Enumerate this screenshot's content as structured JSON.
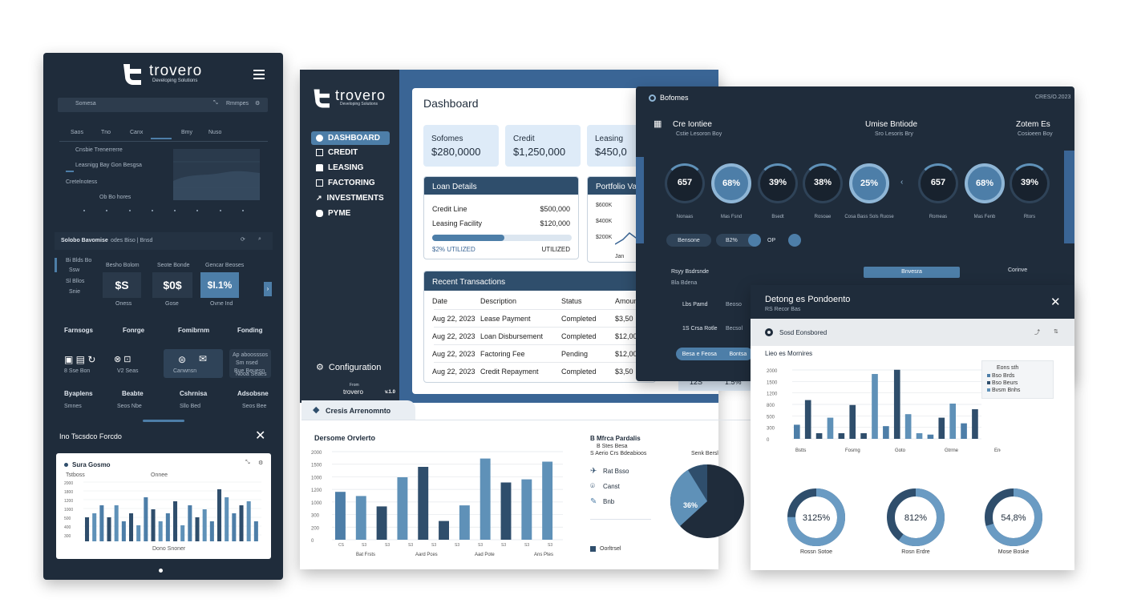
{
  "colors": {
    "dark": "#1f2c3b",
    "sidebar": "#23303f",
    "accent": "#4d7ea8",
    "accent_light": "#8fb6d6",
    "navy": "#2f4e6c",
    "card": "#deebf8"
  },
  "mobile": {
    "brand": "trovero",
    "tagline": "Developing Solutions",
    "menu_icon": "hamburger-icon",
    "search_left": "Somesa",
    "search_right": "Rmmpes",
    "tabs": [
      "Saos",
      "Tno",
      "Canx",
      "Bmy",
      "Nuso"
    ],
    "list": [
      "Cnsbie Trenerrerre",
      "Leasnigg Bay Gon Besgsa",
      "Cretelnotess",
      "Ob Bo hores"
    ],
    "section_title": "Solobo Bavomise",
    "section_sub": "odes Biso | Bnsd",
    "left_list": [
      "Bi Blds Bo",
      "Ssw",
      "Sl Bllos",
      "Snie"
    ],
    "stat_headers": [
      "Besho Bolom",
      "Seote Bonde",
      "Gencar Beoses"
    ],
    "stat_values": [
      "$S",
      "$0$",
      "$I.1%"
    ],
    "stat_labels": [
      "Oness",
      "Gose",
      "Ovne Ind"
    ],
    "grid_heads": [
      "Farnsogs",
      "Fonrge",
      "Fomibrnm",
      "Fonding"
    ],
    "grid_row2_labels": [
      "8 Sse Bon",
      "V2 Seas",
      "Canwnsn",
      "Nooa Seaes"
    ],
    "grid_card4": [
      "Ap aboosssos",
      "Sm nsed",
      "Bue Beuesn"
    ],
    "grid_heads2": [
      "Byaplens",
      "Beabte",
      "Cshrnisa",
      "Adsobsne"
    ],
    "grid_row4_labels": [
      "Smnes",
      "Seos Nbe",
      "Sllo Bed",
      "Seos Bee"
    ],
    "modal_title": "Ino Tscsdco Forcdo",
    "modal_card_title": "Sura Gosmo",
    "modal_tick_labels": [
      "Tstboss",
      "Onnee"
    ],
    "modal_ylabels": [
      "2000",
      "1800",
      "1200",
      "1000",
      "500",
      "400",
      "300"
    ],
    "modal_legend": "Dono Snoner",
    "modal_bars": [
      12,
      14,
      18,
      12,
      18,
      10,
      14,
      8,
      22,
      16,
      10,
      14,
      20,
      8,
      18,
      12,
      16,
      10,
      26,
      22,
      14,
      18,
      20,
      10
    ]
  },
  "main": {
    "brand": "trovero",
    "tagline": "Developing Solutions",
    "nav": [
      {
        "label": "DASHBOARD",
        "icon": "dashboard-icon"
      },
      {
        "label": "CREDIT",
        "icon": "credit-icon"
      },
      {
        "label": "LEASING",
        "icon": "car-icon"
      },
      {
        "label": "FACTORING",
        "icon": "invoice-icon"
      },
      {
        "label": "INVESTMENTS",
        "icon": "trend-icon"
      },
      {
        "label": "PYME",
        "icon": "database-icon"
      }
    ],
    "config": "Configuration",
    "footer_left": "From",
    "footer_brand": "trovero",
    "version": "v.1.0",
    "title": "Dashboard",
    "stats": [
      {
        "label": "Sofomes",
        "value": "$280,0000"
      },
      {
        "label": "Credit",
        "value": "$1,250,000"
      },
      {
        "label": "Leasing",
        "value": "$450,0"
      }
    ],
    "loan": {
      "title": "Loan Details",
      "rows": [
        {
          "label": "Credit Line",
          "value": "$500,000"
        },
        {
          "label": "Leasing Facility",
          "value": "$120,000"
        }
      ],
      "progress": 0.52,
      "utilized_left": "$2% UTILIZED",
      "utilized_right": "UTILIZED"
    },
    "portfolio": {
      "title": "Portfolio Va",
      "y": [
        "$600K",
        "$400K",
        "$200K"
      ],
      "x": "Jan"
    },
    "transactions": {
      "title": "Recent Transactions",
      "headers": [
        "Date",
        "Description",
        "Status",
        "Amoun"
      ],
      "rows": [
        [
          "Aug 22, 2023",
          "Lease Payment",
          "Completed",
          "$3,50"
        ],
        [
          "Aug 22, 2023",
          "Loan Disbursement",
          "Completed",
          "$12,00"
        ],
        [
          "Aug 22, 2023",
          "Factoring Fee",
          "Pending",
          "$12,00"
        ],
        [
          "Aug 22, 2023",
          "Credit Repayment",
          "Completed",
          "$3,50"
        ]
      ]
    },
    "behind_values": [
      "12S",
      "1.5%"
    ]
  },
  "lower": {
    "tab": "Cresis Arrenomnto",
    "chart_title": "Dersome Orvlerto",
    "ylabels": [
      "2000",
      "1500",
      "1000",
      "1200",
      "1000",
      "300",
      "200",
      "0"
    ],
    "xticks": [
      "CS",
      "S3",
      "S3",
      "S3",
      "S3",
      "S3",
      "S3",
      "S3",
      "S3",
      "S3"
    ],
    "xgroups": [
      "Bat Frsts",
      "Aard Pces",
      "Aad Pote",
      "Ans Ptes"
    ],
    "bars_dark": [
      45,
      0,
      0,
      70,
      40,
      0,
      0,
      0,
      0,
      0
    ],
    "bars": [
      {
        "v": 46,
        "c": "#4d7ea8"
      },
      {
        "v": 42,
        "c": "#5f91b8"
      },
      {
        "v": 32,
        "c": "#2f4e6c"
      },
      {
        "v": 60,
        "c": "#5f91b8"
      },
      {
        "v": 70,
        "c": "#2f4e6c"
      },
      {
        "v": 18,
        "c": "#2f4e6c"
      },
      {
        "v": 33,
        "c": "#5f91b8"
      },
      {
        "v": 78,
        "c": "#5f91b8"
      },
      {
        "v": 55,
        "c": "#2f4e6c"
      },
      {
        "v": 58,
        "c": "#5f91b8"
      },
      {
        "v": 75,
        "c": "#5f91b8"
      }
    ],
    "legend_title": "B Mfrca Pardalis",
    "legend_sub1": "B Stes Besa",
    "legend_sub2": "S Aerio Crs Bdeabioos",
    "legend_items": [
      "Rat Bsso",
      "Canst",
      "Bnb"
    ],
    "legend_icons": [
      "bird-icon",
      "pin-icon",
      "tag-icon"
    ],
    "pie_title": "Senk Bersl",
    "pie_label": "36%",
    "pie_legend": "Oorltrsel"
  },
  "dark_panel": {
    "title": "Bofomes",
    "date": "CRES/O.2023",
    "groups": [
      {
        "title": "Cre Iontiee",
        "sub": "Cstie Lesoron Boy"
      },
      {
        "title": "Umise Bntiode",
        "sub": "Sro Lesoris Bry"
      },
      {
        "title": "Zotem Es",
        "sub": "Cosioeen Boy"
      }
    ],
    "rings": [
      {
        "value": "657",
        "label": "Nonaas",
        "fill": false
      },
      {
        "value": "68%",
        "label": "Mas Fsnd",
        "fill": true
      },
      {
        "value": "39%",
        "label": "Bsedt",
        "fill": false
      },
      {
        "value": "38%",
        "label": "Rosoae",
        "fill": false
      },
      {
        "value": "25%",
        "label": "Cosa Bass Sols Ruose",
        "fill": true
      },
      {
        "value": "657",
        "label": "Romeas",
        "fill": false
      },
      {
        "value": "68%",
        "label": "Mas Fenb",
        "fill": true
      },
      {
        "value": "39%",
        "label": "Rtors",
        "fill": false
      }
    ],
    "controls": [
      "Bensone",
      "B2%",
      "OP"
    ],
    "row_a_left": "Rsyy Bsdrsnde",
    "row_a_sub": "Bla Bdena",
    "row_a_mid": "Bnvesra",
    "row_a_right": "Corinve",
    "row_b": [
      "Lbs Pamd",
      "Beoso"
    ],
    "row_c": [
      "1S Crsa Rotle",
      "Becsol"
    ],
    "row_d": [
      "Besa e Feosa",
      "Bontsa"
    ]
  },
  "modal": {
    "title": "Detong es Pondoento",
    "sub": "RS Recor Bas",
    "row": "Sosd Eonsbored",
    "chart_title": "Lieo es Mornires",
    "ylabels": [
      "2000",
      "1500",
      "1200",
      "800",
      "500",
      "300",
      "0"
    ],
    "xgroups": [
      "Bstts",
      "Fosrng",
      "Goto",
      "Gtrrne",
      "Enoe Hrsns"
    ],
    "legend": [
      "Eons sth",
      "Bso Brds",
      "Bso Beurs",
      "Bvsm Bnhs"
    ],
    "bars": [
      {
        "v": 20,
        "c": "#4d7ea8"
      },
      {
        "v": 55,
        "c": "#2f4e6c"
      },
      {
        "v": 8,
        "c": "#2f4e6c"
      },
      {
        "v": 30,
        "c": "#5f91b8"
      },
      {
        "v": 8,
        "c": "#2f4e6c"
      },
      {
        "v": 48,
        "c": "#2f4e6c"
      },
      {
        "v": 8,
        "c": "#2f4e6c"
      },
      {
        "v": 92,
        "c": "#5f91b8"
      },
      {
        "v": 18,
        "c": "#4d7ea8"
      },
      {
        "v": 98,
        "c": "#2f4e6c"
      },
      {
        "v": 35,
        "c": "#5f91b8"
      },
      {
        "v": 8,
        "c": "#5f91b8"
      },
      {
        "v": 6,
        "c": "#4d7ea8"
      },
      {
        "v": 30,
        "c": "#2f4e6c"
      },
      {
        "v": 50,
        "c": "#5f91b8"
      },
      {
        "v": 22,
        "c": "#4d7ea8"
      },
      {
        "v": 42,
        "c": "#2f4e6c"
      }
    ],
    "donuts": [
      {
        "value": "3125%",
        "label": "Rossn Sotoe",
        "pct": 0.75
      },
      {
        "value": "812%",
        "label": "Rosn Erdre",
        "pct": 0.6
      },
      {
        "value": "54,8%",
        "label": "Mose Boske",
        "pct": 0.7
      }
    ]
  }
}
